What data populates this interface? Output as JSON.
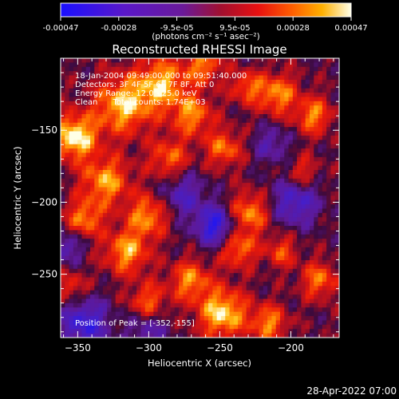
{
  "colorbar": {
    "ticks": [
      "-0.00047",
      "-0.00028",
      "-9.5e-05",
      "9.5e-05",
      "0.00028",
      "0.00047"
    ],
    "units": "(photons cm⁻² s⁻¹ asec⁻²)"
  },
  "chart_data": {
    "type": "heatmap",
    "title": "Reconstructed RHESSI Image",
    "xlabel": "Heliocentric X (arcsec)",
    "ylabel": "Heliocentric Y (arcsec)",
    "xlim": [
      -362,
      -166
    ],
    "ylim": [
      -294,
      -100
    ],
    "x_ticks": [
      -350,
      -300,
      -250,
      -200
    ],
    "y_ticks": [
      -150,
      -200,
      -250
    ],
    "color_range": [
      -0.00047,
      0.00047
    ],
    "colormap": "rainbow (blue-purple-red-orange-yellow-white)",
    "annotations": [
      "18-Jan-2004 09:49:00.000 to 09:51:40.000",
      "Detectors: 3F 4F 5F 6F 7F 8F, Att 0",
      "Energy Range: 12.0 - 25.0 keV",
      "Clean      Total counts: 1.74E+03"
    ],
    "peak_label": "Position of Peak = [-352,-155]",
    "peak": [
      -352,
      -155
    ]
  },
  "footer": {
    "timestamp": "28-Apr-2022 07:00"
  }
}
